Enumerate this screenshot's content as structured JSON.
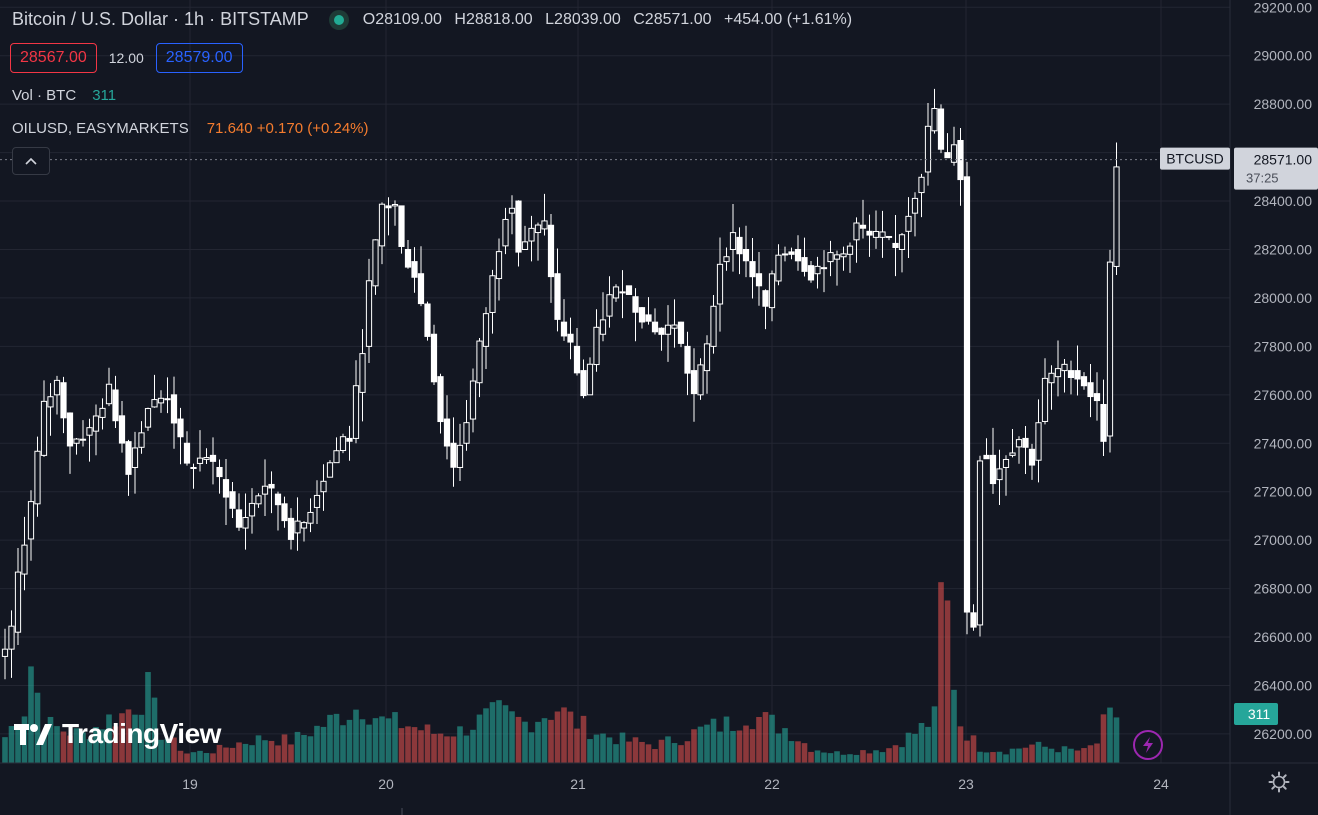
{
  "header": {
    "title": "Bitcoin / U.S. Dollar · 1h · BITSTAMP",
    "open": "O28109.00",
    "high": "H28818.00",
    "low": "L28039.00",
    "close": "C28571.00",
    "change": "+454.00 (+1.61%)"
  },
  "trade": {
    "bid": "28567.00",
    "spread": "12.00",
    "ask": "28579.00"
  },
  "volume": {
    "label": "Vol · BTC",
    "value": "311"
  },
  "overlay": {
    "label": "OILUSD, EASYMARKETS",
    "value": "71.640 +0.170 (+0.24%)"
  },
  "branding": {
    "logo_text": "TradingView"
  },
  "price_tag": {
    "symbol": "BTCUSD",
    "price": "28571.00",
    "countdown": "37:25"
  },
  "volume_tag": "311",
  "colors": {
    "background": "#131722",
    "up_candle": "#ffffff",
    "down_candle": "#ffffff",
    "up_volume": "#26a69a",
    "down_volume": "#ef5350",
    "bid": "#f23645",
    "ask": "#2962ff",
    "overlay": "#f57c2e"
  },
  "chart_data": {
    "type": "candlestick",
    "symbol": "BTCUSD",
    "interval": "1h",
    "y_ticks": [
      26200,
      26400,
      26600,
      26800,
      27000,
      27200,
      27400,
      27600,
      27800,
      28000,
      28200,
      28400,
      28600,
      28800,
      29000,
      29200
    ],
    "y_tick_labels": [
      "26200.00",
      "26400.00",
      "26600.00",
      "26800.00",
      "27000.00",
      "27200.00",
      "27400.00",
      "27600.00",
      "27800.00",
      "28000.00",
      "28200.00",
      "28400.00",
      "28600.00",
      "28800.00",
      "29000.00",
      "29200.00"
    ],
    "x_labels": [
      "19",
      "20",
      "21",
      "22",
      "23",
      "24"
    ],
    "ylim": [
      26080,
      29230
    ],
    "grid": true,
    "anchors": [
      [
        0,
        26550
      ],
      [
        1,
        26620
      ],
      [
        2,
        26860
      ],
      [
        4,
        27150
      ],
      [
        6,
        27550
      ],
      [
        8,
        27650
      ],
      [
        10,
        27400
      ],
      [
        13,
        27450
      ],
      [
        16,
        27620
      ],
      [
        19,
        27300
      ],
      [
        22,
        27550
      ],
      [
        25,
        27600
      ],
      [
        28,
        27300
      ],
      [
        31,
        27350
      ],
      [
        34,
        27200
      ],
      [
        36,
        27050
      ],
      [
        38,
        27150
      ],
      [
        40,
        27230
      ],
      [
        42,
        27150
      ],
      [
        44,
        27030
      ],
      [
        46,
        27070
      ],
      [
        48,
        27200
      ],
      [
        50,
        27320
      ],
      [
        52,
        27420
      ],
      [
        53,
        27420
      ],
      [
        55,
        27800
      ],
      [
        56,
        28050
      ],
      [
        58,
        28380
      ],
      [
        60,
        28380
      ],
      [
        61,
        28200
      ],
      [
        63,
        28100
      ],
      [
        65,
        27850
      ],
      [
        67,
        27500
      ],
      [
        69,
        27300
      ],
      [
        71,
        27500
      ],
      [
        73,
        27800
      ],
      [
        75,
        28080
      ],
      [
        77,
        28350
      ],
      [
        78,
        28400
      ],
      [
        79,
        28200
      ],
      [
        81,
        28270
      ],
      [
        83,
        28300
      ],
      [
        85,
        27900
      ],
      [
        87,
        27800
      ],
      [
        89,
        27600
      ],
      [
        91,
        27850
      ],
      [
        93,
        28000
      ],
      [
        95,
        28050
      ],
      [
        97,
        27960
      ],
      [
        99,
        27900
      ],
      [
        101,
        27850
      ],
      [
        103,
        27900
      ],
      [
        105,
        27700
      ],
      [
        106,
        27600
      ],
      [
        108,
        27800
      ],
      [
        110,
        28150
      ],
      [
        112,
        28250
      ],
      [
        115,
        28100
      ],
      [
        117,
        27960
      ],
      [
        119,
        28180
      ],
      [
        121,
        28200
      ],
      [
        124,
        28100
      ],
      [
        126,
        28150
      ],
      [
        129,
        28180
      ],
      [
        131,
        28300
      ],
      [
        133,
        28250
      ],
      [
        135,
        28250
      ],
      [
        137,
        28200
      ],
      [
        139,
        28350
      ],
      [
        141,
        28520
      ],
      [
        142,
        28690
      ],
      [
        143,
        28780
      ],
      [
        144,
        28600
      ],
      [
        145,
        28560
      ],
      [
        146,
        28650
      ],
      [
        147,
        28500
      ],
      [
        148,
        26700
      ],
      [
        149,
        26650
      ],
      [
        150,
        27350
      ],
      [
        151,
        27350
      ],
      [
        152,
        27250
      ],
      [
        154,
        27350
      ],
      [
        156,
        27420
      ],
      [
        158,
        27330
      ],
      [
        160,
        27650
      ],
      [
        162,
        27700
      ],
      [
        164,
        27700
      ],
      [
        166,
        27650
      ],
      [
        168,
        27560
      ],
      [
        169,
        27430
      ],
      [
        170,
        28130
      ],
      [
        171,
        28560
      ]
    ],
    "volume_anchors": [
      [
        0,
        26
      ],
      [
        3,
        55
      ],
      [
        4,
        100
      ],
      [
        6,
        40
      ],
      [
        8,
        35
      ],
      [
        12,
        28
      ],
      [
        16,
        44
      ],
      [
        18,
        48
      ],
      [
        22,
        72
      ],
      [
        24,
        30
      ],
      [
        28,
        10
      ],
      [
        32,
        12
      ],
      [
        36,
        20
      ],
      [
        40,
        25
      ],
      [
        44,
        22
      ],
      [
        48,
        35
      ],
      [
        54,
        55
      ],
      [
        55,
        58
      ],
      [
        58,
        42
      ],
      [
        62,
        38
      ],
      [
        66,
        30
      ],
      [
        70,
        32
      ],
      [
        74,
        45
      ],
      [
        76,
        50
      ],
      [
        80,
        40
      ],
      [
        85,
        55
      ],
      [
        88,
        40
      ],
      [
        92,
        28
      ],
      [
        96,
        22
      ],
      [
        100,
        18
      ],
      [
        104,
        25
      ],
      [
        108,
        35
      ],
      [
        112,
        40
      ],
      [
        114,
        50
      ],
      [
        116,
        45
      ],
      [
        120,
        35
      ],
      [
        124,
        15
      ],
      [
        128,
        10
      ],
      [
        132,
        12
      ],
      [
        136,
        15
      ],
      [
        140,
        30
      ],
      [
        143,
        45
      ],
      [
        144,
        160
      ],
      [
        145,
        150
      ],
      [
        146,
        85
      ],
      [
        147,
        40
      ],
      [
        148,
        30
      ],
      [
        150,
        15
      ],
      [
        154,
        12
      ],
      [
        158,
        18
      ],
      [
        162,
        14
      ],
      [
        166,
        12
      ],
      [
        168,
        20
      ],
      [
        169,
        38
      ],
      [
        170,
        45
      ],
      [
        171,
        48
      ]
    ],
    "volume_ylim": [
      0,
      175
    ]
  }
}
